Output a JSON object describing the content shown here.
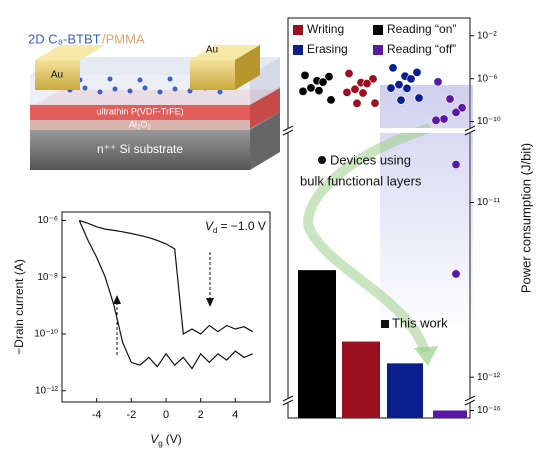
{
  "schematic": {
    "material_label": "2D C₈-BTBT",
    "matrix_label": "/PMMA",
    "electrode_left": "Au",
    "electrode_right": "Au",
    "ferroelectric_label": "ultrathin P(VDF-TrFE)",
    "dielectric_label": "Al₂O₃",
    "substrate_label": "n⁺⁺ Si substrate"
  },
  "chart_data": [
    {
      "type": "line",
      "y_label": "−Drain current (A)",
      "x_label": {
        "variable": "V",
        "subscript": "g",
        "unit": "(V)"
      },
      "annotation": {
        "variable": "V",
        "subscript": "d",
        "text": "= −1.0 V"
      },
      "x": [
        -5,
        -4.5,
        -4,
        -3.5,
        -3,
        -2.5,
        -2,
        -1.5,
        -1,
        -0.5,
        0,
        0.5,
        1,
        1.5,
        2,
        2.5,
        3,
        3.5,
        4,
        4.5,
        5
      ],
      "series": [
        {
          "color": "#111111",
          "values": [
            1e-06,
            8e-07,
            6e-07,
            5e-07,
            4.5e-07,
            4e-07,
            3.5e-07,
            3e-07,
            2.5e-07,
            2e-07,
            1.5e-07,
            1e-07,
            1e-10,
            1.5e-10,
            1e-10,
            2e-10,
            1.2e-10,
            2e-10,
            1.5e-10,
            1.8e-10,
            1.2e-10
          ]
        },
        {
          "color": "#111111",
          "values": [
            1e-06,
            2e-07,
            5e-08,
            1e-08,
            1e-09,
            5e-11,
            1e-11,
            8e-12,
            1.5e-11,
            7e-12,
            2e-11,
            8e-12,
            1.5e-11,
            6e-12,
            2e-11,
            1e-11,
            2e-11,
            1.2e-11,
            2.5e-11,
            1.5e-11,
            2e-11
          ]
        }
      ],
      "xlim": [
        -6,
        6
      ],
      "xticks": [
        -4,
        -2,
        0,
        2,
        4
      ],
      "ylim": [
        4e-13,
        2e-06
      ],
      "yticks": [
        {
          "value": 1e-12,
          "label": "10⁻¹²"
        },
        {
          "value": 1e-10,
          "label": "10⁻¹⁰"
        },
        {
          "value": 1e-08,
          "label": "10⁻⁸"
        },
        {
          "value": 1e-06,
          "label": "10⁻⁶"
        }
      ],
      "log_y": true
    },
    {
      "type": "bar",
      "y_label": "Power consumption (J/bit)",
      "categories": [
        "Reading “on”",
        "Writing",
        "Erasing",
        "Reading “off”"
      ],
      "colors": [
        "#000000",
        "#9b1020",
        "#0a1f8f",
        "#5b17a8"
      ],
      "values": [
        4.1e-12,
        1.6e-12,
        1.2e-12,
        1e-16
      ],
      "series_label": "This work",
      "bulk_label": [
        "Devices using",
        "bulk functional layers"
      ],
      "bulk_values": [
        [
          2e-06,
          1.5e-06,
          8e-07,
          4e-07,
          2e-07,
          1e-07,
          5e-08,
          2e-08
        ],
        [
          3e-06,
          1e-06,
          5e-07,
          3e-07,
          1.5e-07,
          8e-08,
          3e-08,
          1e-08,
          5e-09
        ],
        [
          1e-05,
          4e-06,
          2e-06,
          8e-07,
          4e-07,
          2e-07,
          8e-08,
          3e-08,
          1e-08
        ],
        [
          5e-07,
          3e-08,
          1e-09,
          5e-10,
          3e-10,
          2e-10,
          1.65e-11,
          3.9e-12
        ]
      ],
      "y_segments": [
        {
          "ylim": [
            2.5e-11,
            0.1
          ],
          "yticks": [
            {
              "value": 1e-10,
              "label": "10⁻¹⁰"
            },
            {
              "value": 1e-06,
              "label": "10⁻⁶"
            },
            {
              "value": 0.01,
              "label": "10⁻²"
            }
          ]
        },
        {
          "ylim": [
            7.6e-13,
            2.5e-11
          ],
          "yticks": [
            {
              "value": 1e-12,
              "label": "10⁻¹²"
            },
            {
              "value": 1e-11,
              "label": "10⁻¹¹"
            }
          ]
        },
        {
          "ylim": [
            5e-17,
            2e-16
          ],
          "yticks": [
            {
              "value": 1e-16,
              "label": "10⁻¹⁶"
            }
          ]
        }
      ],
      "log_y": true,
      "legend": "top-left"
    }
  ]
}
